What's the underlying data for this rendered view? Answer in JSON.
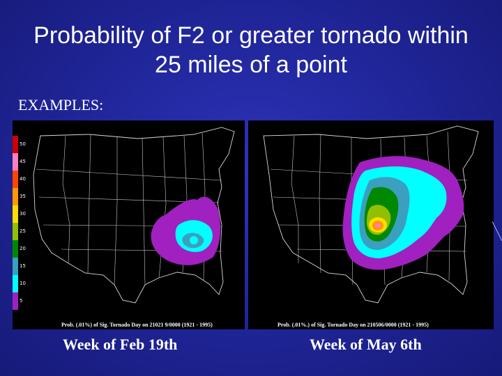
{
  "slide": {
    "title_line1": "Probability of F2 or greater tornado within",
    "title_line2": "25 miles of a point",
    "examples_label": "EXAMPLES:"
  },
  "legend": {
    "levels": [
      {
        "label": "50",
        "color": "#cc0000"
      },
      {
        "label": "45",
        "color": "#ff7fbf"
      },
      {
        "label": "40",
        "color": "#ff4500"
      },
      {
        "label": "35",
        "color": "#ff9900"
      },
      {
        "label": "30",
        "color": "#ffdd00"
      },
      {
        "label": "25",
        "color": "#90c000"
      },
      {
        "label": "20",
        "color": "#008800"
      },
      {
        "label": "15",
        "color": "#3b9fbf"
      },
      {
        "label": "10",
        "color": "#00ffff"
      },
      {
        "label": "5",
        "color": "#a020c0"
      }
    ]
  },
  "maps": [
    {
      "caption": "Prob. (.01%) of Sig. Tornado Day on 21021 9/0000 (1921 - 1995)",
      "week": "Week of Feb 19th"
    },
    {
      "caption": "Prob. (.01%.) of Sig. Tornado Day on 210506/0000 (1921 - 1995)",
      "week": "Week of May 6th"
    }
  ],
  "colors": {
    "background": "#1f2496",
    "purple": "#a020c0",
    "cyan": "#00ffff",
    "steelblue": "#3b9fbf",
    "green": "#008800",
    "lightgreen": "#90c000",
    "yellow": "#ffdd00",
    "orange": "#ff9900",
    "red": "#cc0000"
  }
}
